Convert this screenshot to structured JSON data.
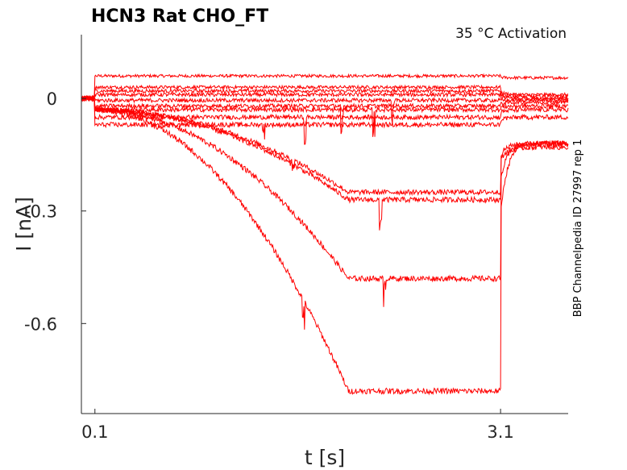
{
  "chart_data": {
    "type": "line",
    "title": "HCN3  Rat  CHO_FT",
    "subtitle": "35 °C  Activation",
    "side_label": "BBP Channelpedia ID 27997 rep 1",
    "xlabel": "t [s]",
    "ylabel": "I [nA]",
    "x_ticks": [
      0.1,
      3.1
    ],
    "x_tick_labels": [
      "0.1",
      "3.1"
    ],
    "y_ticks": [
      0,
      -0.3,
      -0.6
    ],
    "y_tick_labels": [
      "0",
      "-0.3",
      "-0.6"
    ],
    "xlim": [
      0.0,
      3.6
    ],
    "ylim": [
      -0.84,
      0.17
    ],
    "grid": false,
    "legend": "none",
    "series_color": "#ff0000",
    "series": [
      {
        "pre": 0.0,
        "step": 0.06,
        "post": 0.055
      },
      {
        "pre": 0.0,
        "step": 0.03,
        "post": 0.01
      },
      {
        "pre": 0.0,
        "step": 0.02,
        "post": 0.005
      },
      {
        "pre": 0.0,
        "step": 0.01,
        "post": 0.0
      },
      {
        "pre": 0.0,
        "step": -0.005,
        "post": -0.005
      },
      {
        "pre": 0.0,
        "step": -0.02,
        "post": -0.01
      },
      {
        "pre": 0.0,
        "step": -0.03,
        "post": -0.02
      },
      {
        "pre": 0.0,
        "step": -0.05,
        "post": -0.03
      },
      {
        "pre": 0.0,
        "step": -0.07,
        "post": -0.05
      },
      {
        "pre": 0.0,
        "step": -0.22,
        "post": -0.12
      },
      {
        "pre": 0.0,
        "step": -0.24,
        "post": -0.13
      },
      {
        "pre": 0.0,
        "step": -0.45,
        "post": -0.12
      },
      {
        "pre": 0.0,
        "step": -0.75,
        "post": -0.12
      }
    ]
  }
}
